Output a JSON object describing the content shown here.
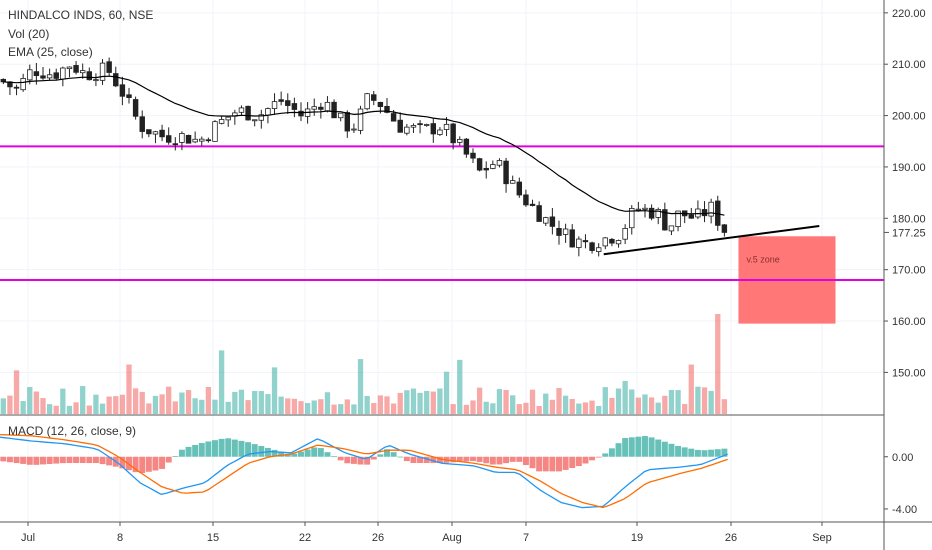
{
  "header": {
    "title": "HINDALCO INDS, 60, NSE",
    "vol_label": "Vol (20)",
    "ema_label": "EMA (25, close)",
    "macd_label": "MACD (12, 26, close, 9)"
  },
  "annotations": {
    "zone_label": "v.5 zone",
    "last_price": "177.25"
  },
  "colors": {
    "up": "#26a69a",
    "down": "#ef5350",
    "level": "#e100e1",
    "zone": "#ff7070",
    "ema": "#000000",
    "macd": "#2196f3",
    "signal": "#ff6d00"
  },
  "chart_data": [
    {
      "type": "candlestick",
      "title": "HINDALCO INDS, 60, NSE",
      "x_ticks": [
        "Jul",
        "8",
        "15",
        "22",
        "26",
        "Aug",
        "7",
        "19",
        "26",
        "Sep"
      ],
      "y_ticks": [
        "150.00",
        "160.00",
        "170.00",
        "180.00",
        "190.00",
        "200.00",
        "210.00",
        "220.00"
      ],
      "ylim": [
        141.9,
        222.5
      ],
      "price_path": [
        {
          "t": 0,
          "p": 207
        },
        {
          "t": 1.5,
          "p": 205
        },
        {
          "t": 3,
          "p": 209
        },
        {
          "t": 5,
          "p": 208
        },
        {
          "t": 6.5,
          "p": 210
        },
        {
          "t": 8,
          "p": 208
        },
        {
          "t": 10,
          "p": 209
        },
        {
          "t": 11.5,
          "p": 204
        },
        {
          "t": 13,
          "p": 198
        },
        {
          "t": 15,
          "p": 196
        },
        {
          "t": 17,
          "p": 196
        },
        {
          "t": 18.5,
          "p": 195
        },
        {
          "t": 20,
          "p": 198
        },
        {
          "t": 22,
          "p": 201
        },
        {
          "t": 24,
          "p": 200
        },
        {
          "t": 26,
          "p": 203
        },
        {
          "t": 28,
          "p": 200
        },
        {
          "t": 30,
          "p": 203
        },
        {
          "t": 32,
          "p": 198
        },
        {
          "t": 33,
          "p": 198
        },
        {
          "t": 34,
          "p": 203
        },
        {
          "t": 35,
          "p": 203
        },
        {
          "t": 37,
          "p": 198
        },
        {
          "t": 39,
          "p": 197
        },
        {
          "t": 41,
          "p": 198
        },
        {
          "t": 43,
          "p": 193
        },
        {
          "t": 44.5,
          "p": 189
        },
        {
          "t": 46,
          "p": 191
        },
        {
          "t": 48,
          "p": 185
        },
        {
          "t": 49.5,
          "p": 182
        },
        {
          "t": 51,
          "p": 179
        },
        {
          "t": 53,
          "p": 176
        },
        {
          "t": 54.5,
          "p": 175
        },
        {
          "t": 56,
          "p": 176
        },
        {
          "t": 57.5,
          "p": 177
        },
        {
          "t": 59,
          "p": 182
        },
        {
          "t": 61,
          "p": 181
        },
        {
          "t": 62,
          "p": 178
        },
        {
          "t": 63,
          "p": 181
        },
        {
          "t": 64.5,
          "p": 180
        },
        {
          "t": 66,
          "p": 182
        },
        {
          "t": 67,
          "p": 178
        },
        {
          "t": 67.5,
          "p": 177.25
        }
      ],
      "ema_period": 25,
      "horizontal_levels": [
        194,
        168
      ],
      "trendline": [
        {
          "t": 56,
          "p": 173
        },
        {
          "t": 76,
          "p": 178.5
        }
      ],
      "zone": {
        "t_start": 68.5,
        "t_end": 77.5,
        "p_top": 176.5,
        "p_bottom": 159.5,
        "label": "v.5 zone"
      },
      "last_price": 177.25,
      "volume_spike_t": 66.5
    },
    {
      "type": "macd",
      "title": "MACD (12, 26, close, 9)",
      "y_ticks": [
        "-4.00",
        "0.00"
      ],
      "ylim": [
        -5.0,
        3.2
      ],
      "macd_path": [
        {
          "t": 0,
          "v": 1.5
        },
        {
          "t": 3,
          "v": 1.2
        },
        {
          "t": 6,
          "v": 1.0
        },
        {
          "t": 9,
          "v": 0.6
        },
        {
          "t": 11,
          "v": -0.5
        },
        {
          "t": 13,
          "v": -2.0
        },
        {
          "t": 15,
          "v": -2.9
        },
        {
          "t": 17,
          "v": -2.4
        },
        {
          "t": 19,
          "v": -2.0
        },
        {
          "t": 21,
          "v": -0.7
        },
        {
          "t": 23,
          "v": 0.2
        },
        {
          "t": 25,
          "v": 0.4
        },
        {
          "t": 27,
          "v": 0.3
        },
        {
          "t": 29.5,
          "v": 1.4
        },
        {
          "t": 32,
          "v": 0.3
        },
        {
          "t": 34,
          "v": -0.2
        },
        {
          "t": 36,
          "v": 0.9
        },
        {
          "t": 38,
          "v": 0.2
        },
        {
          "t": 41,
          "v": -0.5
        },
        {
          "t": 44,
          "v": -0.7
        },
        {
          "t": 46,
          "v": -1.2
        },
        {
          "t": 48,
          "v": -1.2
        },
        {
          "t": 50,
          "v": -2.5
        },
        {
          "t": 52,
          "v": -3.5
        },
        {
          "t": 54,
          "v": -3.9
        },
        {
          "t": 56,
          "v": -3.8
        },
        {
          "t": 58,
          "v": -2.3
        },
        {
          "t": 60,
          "v": -1.0
        },
        {
          "t": 63,
          "v": -0.8
        },
        {
          "t": 65,
          "v": -0.6
        },
        {
          "t": 67.5,
          "v": 0.2
        }
      ],
      "signal_path": [
        {
          "t": 0,
          "v": 1.7
        },
        {
          "t": 3,
          "v": 1.6
        },
        {
          "t": 6,
          "v": 1.3
        },
        {
          "t": 9,
          "v": 0.9
        },
        {
          "t": 11,
          "v": 0.0
        },
        {
          "t": 13,
          "v": -1.2
        },
        {
          "t": 15,
          "v": -2.3
        },
        {
          "t": 17,
          "v": -2.8
        },
        {
          "t": 19,
          "v": -2.7
        },
        {
          "t": 21,
          "v": -1.6
        },
        {
          "t": 23,
          "v": -0.5
        },
        {
          "t": 25,
          "v": 0.0
        },
        {
          "t": 27,
          "v": 0.2
        },
        {
          "t": 29.5,
          "v": 0.9
        },
        {
          "t": 32,
          "v": 0.6
        },
        {
          "t": 34,
          "v": 0.2
        },
        {
          "t": 36,
          "v": 0.5
        },
        {
          "t": 38,
          "v": 0.5
        },
        {
          "t": 41,
          "v": -0.2
        },
        {
          "t": 44,
          "v": -0.5
        },
        {
          "t": 46,
          "v": -0.8
        },
        {
          "t": 48,
          "v": -1.0
        },
        {
          "t": 50,
          "v": -1.8
        },
        {
          "t": 52,
          "v": -2.8
        },
        {
          "t": 54,
          "v": -3.5
        },
        {
          "t": 56,
          "v": -3.9
        },
        {
          "t": 58,
          "v": -3.2
        },
        {
          "t": 60,
          "v": -2.0
        },
        {
          "t": 63,
          "v": -1.3
        },
        {
          "t": 65,
          "v": -0.9
        },
        {
          "t": 67.5,
          "v": -0.2
        }
      ]
    }
  ]
}
